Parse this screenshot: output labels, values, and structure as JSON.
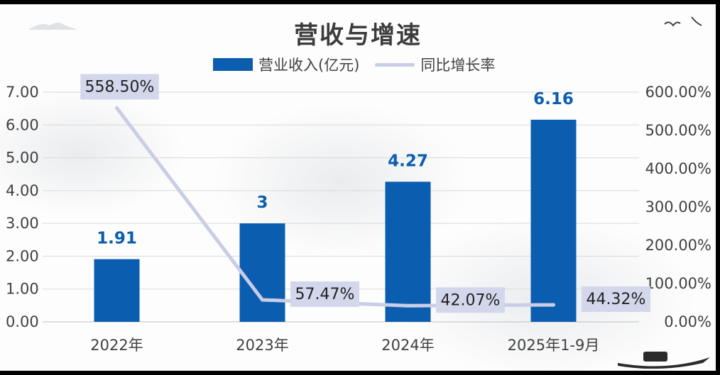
{
  "chart_data": {
    "type": "bar",
    "title": "营收与增速",
    "categories": [
      "2022年",
      "2023年",
      "2024年",
      "2025年1-9月"
    ],
    "series": [
      {
        "name": "营业收入(亿元)",
        "type": "bar",
        "axis": "left",
        "values": [
          1.91,
          3,
          4.27,
          6.16
        ],
        "labels": [
          "1.91",
          "3",
          "4.27",
          "6.16"
        ]
      },
      {
        "name": "同比增长率",
        "type": "line",
        "axis": "right",
        "values": [
          558.5,
          57.47,
          42.07,
          44.32
        ],
        "labels": [
          "558.50%",
          "57.47%",
          "42.07%",
          "44.32%"
        ]
      }
    ],
    "left_axis": {
      "min": 0,
      "max": 7,
      "step": 1,
      "ticks": [
        "0.00",
        "1.00",
        "2.00",
        "3.00",
        "4.00",
        "5.00",
        "6.00",
        "7.00"
      ]
    },
    "right_axis": {
      "min": 0,
      "max": 600,
      "step": 100,
      "ticks": [
        "0.00%",
        "100.00%",
        "200.00%",
        "300.00%",
        "400.00%",
        "500.00%",
        "600.00%"
      ]
    },
    "grid": true,
    "legend_position": "top",
    "colors": {
      "bar": "#0b5db0",
      "line": "#c9cde6",
      "label_box": "#d3d7ec"
    }
  }
}
